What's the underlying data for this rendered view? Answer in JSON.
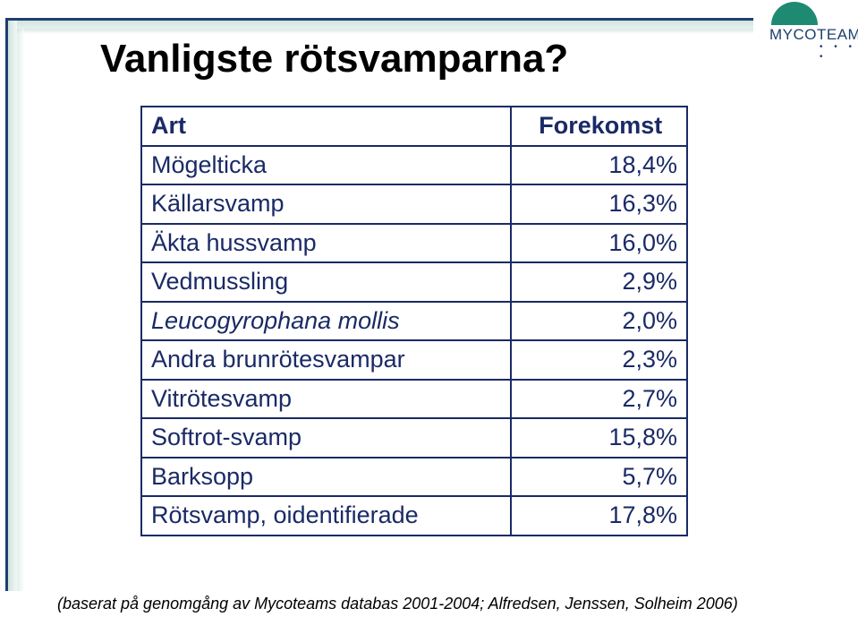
{
  "slide": {
    "title": "Vanligste rötsvamparna?",
    "logo": {
      "text_bold": "MYCO",
      "text_light": "TEAM",
      "dots": "• • • •",
      "colors": {
        "dome": "#1f8a72",
        "text": "#1e3f6e"
      }
    },
    "table": {
      "headers": {
        "art": "Art",
        "forekomst": "Forekomst"
      },
      "rows": [
        {
          "art": "Mögelticka",
          "forekomst": "18,4%"
        },
        {
          "art": "Källarsvamp",
          "forekomst": "16,3%"
        },
        {
          "art": "Äkta hussvamp",
          "forekomst": "16,0%"
        },
        {
          "art": "Vedmussling",
          "forekomst": "2,9%"
        },
        {
          "art": "Leucogyrophana mollis",
          "forekomst": "2,0%"
        },
        {
          "art": "Andra brunrötesvampar",
          "forekomst": "2,3%"
        },
        {
          "art": "Vitrötesvamp",
          "forekomst": "2,7%"
        },
        {
          "art": "Softrot-svamp",
          "forekomst": "15,8%"
        },
        {
          "art": "Barksopp",
          "forekomst": "5,7%"
        },
        {
          "art": "Rötsvamp, oidentifierade",
          "forekomst": "17,8%"
        }
      ],
      "colors": {
        "text": "#1a2a66",
        "border": "#1a2a66"
      }
    },
    "footnote": "(baserat på genomgång av Mycoteams databas 2001-2004; Alfredsen, Jenssen, Solheim 2006)"
  }
}
